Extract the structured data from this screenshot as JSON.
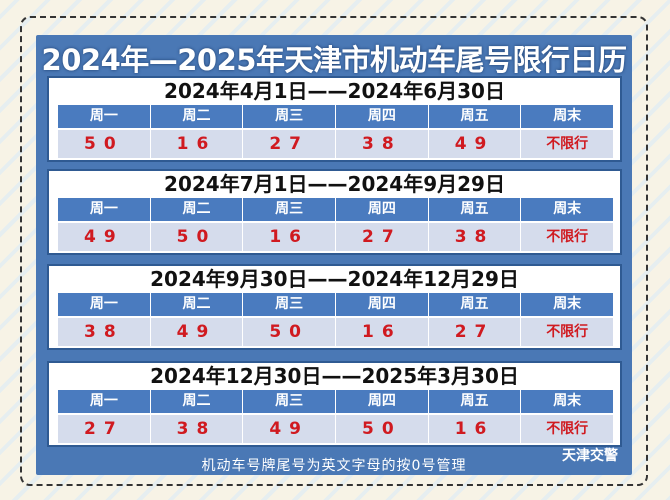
{
  "title": "2024年—2025年天津市机动车尾号限行日历",
  "headers": [
    "周一",
    "周二",
    "周三",
    "周四",
    "周五",
    "周末"
  ],
  "sections": [
    {
      "date": "2024年4月1日——2024年6月30日",
      "values": [
        "50",
        "16",
        "27",
        "38",
        "49",
        "不限行"
      ]
    },
    {
      "date": "2024年7月1日——2024年9月29日",
      "values": [
        "49",
        "50",
        "16",
        "27",
        "38",
        "不限行"
      ]
    },
    {
      "date": "2024年9月30日——2024年12月29日",
      "values": [
        "38",
        "49",
        "50",
        "16",
        "27",
        "不限行"
      ]
    },
    {
      "date": "2024年12月30日——2025年3月30日",
      "values": [
        "27",
        "38",
        "49",
        "50",
        "16",
        "不限行"
      ]
    }
  ],
  "footer": "机动车号牌尾号为英文字母的按0号管理",
  "brand": "天津交警",
  "colors": {
    "panel": "#4a78b5",
    "header": "#4a7bbf",
    "value_text": "#d01a20"
  }
}
